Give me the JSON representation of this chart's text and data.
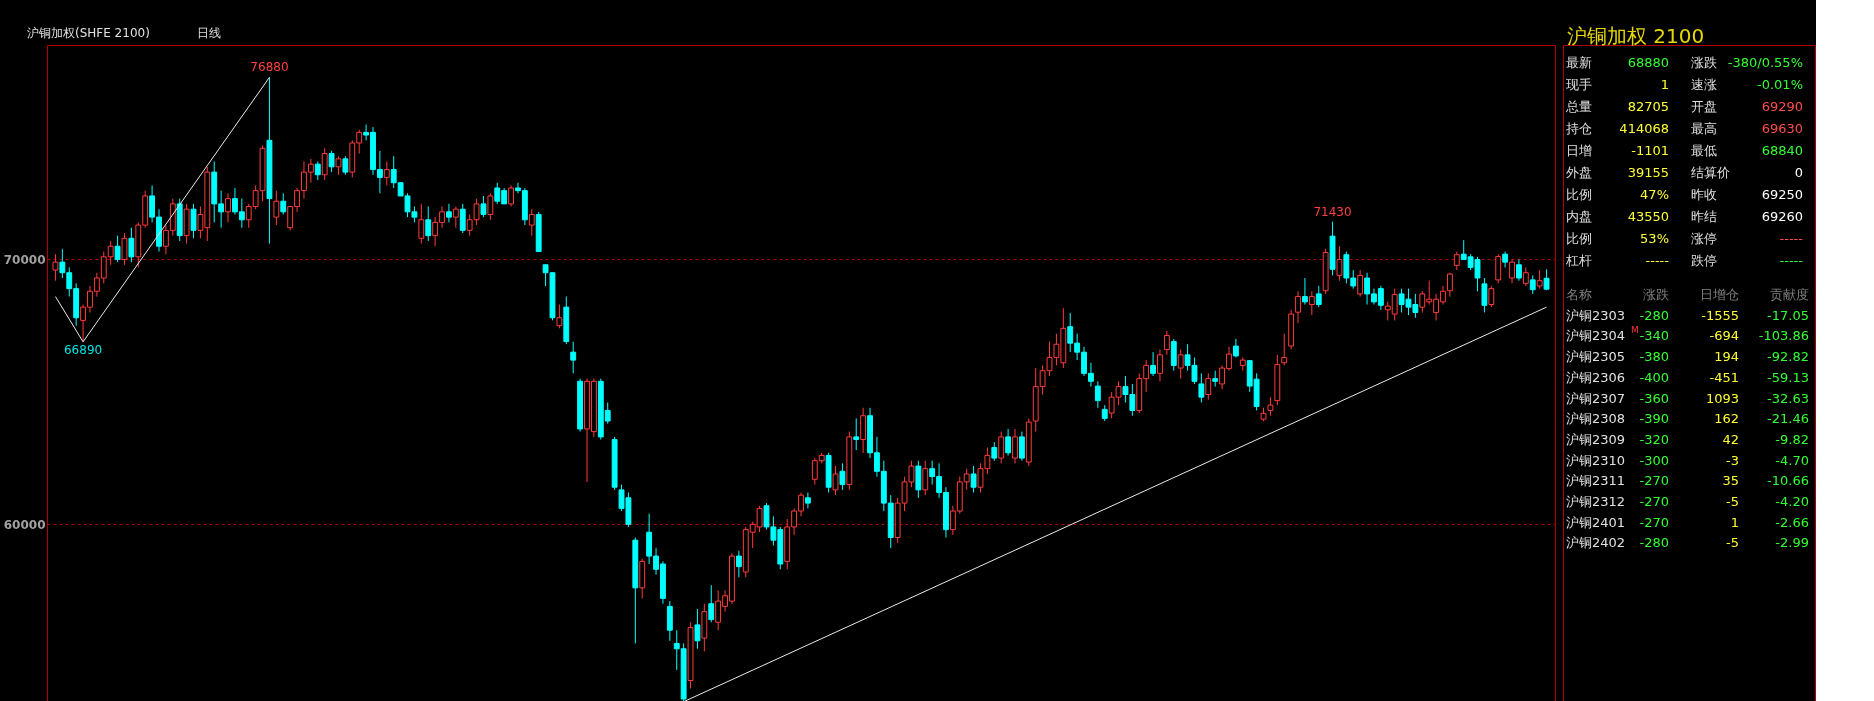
{
  "chart_data": [
    {
      "type": "candlestick",
      "title": "沪铜加权(SHFE 2100)",
      "subtitle": "日线",
      "categories": [
        null,
        null,
        null,
        null,
        null,
        null,
        null,
        null,
        null,
        null,
        null,
        null,
        null,
        null,
        null,
        null,
        null,
        null,
        null,
        null,
        null,
        null,
        null,
        null,
        null,
        null,
        null,
        null,
        null,
        null,
        null,
        null,
        null,
        null,
        null,
        null,
        null,
        null,
        null,
        null,
        null,
        null,
        null,
        null,
        null,
        null,
        null,
        null,
        null,
        null,
        null,
        null,
        null,
        null,
        null,
        null,
        null,
        null,
        null,
        null,
        null,
        null,
        null,
        null,
        null,
        null,
        null,
        null,
        null,
        null,
        null,
        null,
        null,
        null,
        null,
        null,
        null,
        null,
        null,
        null,
        null,
        null,
        null,
        null,
        null,
        null,
        null,
        null,
        null,
        null,
        null,
        null,
        null,
        null,
        null,
        null,
        null,
        null,
        null,
        null,
        null,
        null,
        null,
        null,
        null,
        null,
        null,
        null,
        null,
        null,
        null,
        null,
        null,
        null,
        null,
        null,
        null,
        null,
        null,
        null,
        null,
        null,
        null,
        null,
        null,
        null,
        null,
        null,
        null,
        null,
        null,
        null,
        null,
        null,
        null,
        null,
        null,
        null,
        null,
        null,
        null,
        null,
        null,
        null,
        null,
        null,
        null,
        null,
        null,
        null,
        null,
        null,
        null,
        null,
        null,
        null,
        null,
        null,
        null,
        null,
        null,
        null,
        null,
        null,
        null,
        null,
        null,
        null,
        null,
        null,
        null,
        null,
        null,
        null,
        null,
        null,
        null,
        null,
        null,
        null,
        null,
        null,
        null,
        null,
        null,
        null,
        null,
        null,
        null,
        null,
        null,
        null,
        null,
        null,
        null,
        null,
        null,
        null,
        null,
        null,
        null,
        null,
        null,
        null,
        null,
        null,
        null,
        null,
        null,
        null,
        null,
        null,
        null,
        null,
        null,
        null,
        null
      ],
      "ohlc": [
        [
          69600,
          70200,
          69200,
          69900
        ],
        [
          69900,
          70400,
          69300,
          69500
        ],
        [
          69500,
          69700,
          68600,
          68900
        ],
        [
          68900,
          69100,
          67500,
          67800
        ],
        [
          67700,
          68300,
          66890,
          68200
        ],
        [
          68200,
          69000,
          68000,
          68800
        ],
        [
          68800,
          69500,
          68600,
          69300
        ],
        [
          69300,
          70300,
          69100,
          70100
        ],
        [
          70100,
          70700,
          69800,
          70500
        ],
        [
          70500,
          70900,
          69900,
          70000
        ],
        [
          70000,
          71000,
          69800,
          70800
        ],
        [
          70800,
          71200,
          69900,
          70100
        ],
        [
          70100,
          71400,
          69700,
          71300
        ],
        [
          71300,
          72600,
          71200,
          72400
        ],
        [
          72400,
          72800,
          71400,
          71600
        ],
        [
          71600,
          71900,
          70300,
          70500
        ],
        [
          70500,
          71300,
          70200,
          71100
        ],
        [
          71100,
          72300,
          70900,
          72100
        ],
        [
          72100,
          72300,
          70700,
          70900
        ],
        [
          70900,
          72100,
          70600,
          71900
        ],
        [
          71900,
          72100,
          70800,
          71100
        ],
        [
          71100,
          72000,
          70800,
          71700
        ],
        [
          71200,
          73500,
          70700,
          73300
        ],
        [
          73300,
          73700,
          71400,
          72100
        ],
        [
          72100,
          72600,
          71200,
          71800
        ],
        [
          71800,
          72500,
          71400,
          72300
        ],
        [
          72300,
          72700,
          71700,
          71800
        ],
        [
          71800,
          72300,
          71200,
          71500
        ],
        [
          71500,
          72100,
          71200,
          72000
        ],
        [
          72000,
          72800,
          71900,
          72600
        ],
        [
          72600,
          74300,
          72200,
          74200
        ],
        [
          74500,
          76880,
          70600,
          72300
        ],
        [
          71600,
          72600,
          71300,
          72200
        ],
        [
          72200,
          72500,
          71700,
          71800
        ],
        [
          71200,
          72000,
          71100,
          72000
        ],
        [
          72000,
          72700,
          71800,
          72600
        ],
        [
          72600,
          73700,
          72300,
          73300
        ],
        [
          73300,
          73800,
          72900,
          73600
        ],
        [
          73600,
          73700,
          73000,
          73200
        ],
        [
          73200,
          74200,
          73000,
          74000
        ],
        [
          74000,
          74100,
          73300,
          73500
        ],
        [
          73500,
          73900,
          73200,
          73800
        ],
        [
          73800,
          73900,
          73200,
          73300
        ],
        [
          73300,
          74500,
          73100,
          74400
        ],
        [
          74400,
          74900,
          74000,
          74800
        ],
        [
          74800,
          75100,
          74500,
          74700
        ],
        [
          74800,
          75000,
          73200,
          73400
        ],
        [
          73400,
          74100,
          72500,
          73100
        ],
        [
          73100,
          73700,
          72800,
          73400
        ],
        [
          73400,
          73900,
          72700,
          72900
        ],
        [
          72900,
          72900,
          72400,
          72400
        ],
        [
          72400,
          72500,
          71600,
          71800
        ],
        [
          71800,
          72000,
          71400,
          71600
        ],
        [
          70800,
          72100,
          70600,
          71500
        ],
        [
          71500,
          72000,
          70700,
          70900
        ],
        [
          70900,
          71600,
          70500,
          71400
        ],
        [
          71400,
          72000,
          71200,
          71800
        ],
        [
          71800,
          72100,
          71400,
          71600
        ],
        [
          71600,
          72000,
          71200,
          71900
        ],
        [
          71900,
          72100,
          71000,
          71100
        ],
        [
          71100,
          71700,
          70900,
          71500
        ],
        [
          71500,
          72300,
          71300,
          72100
        ],
        [
          72100,
          72400,
          71600,
          71700
        ],
        [
          71700,
          72500,
          71500,
          72400
        ],
        [
          72700,
          72900,
          72100,
          72200
        ],
        [
          72600,
          72700,
          72100,
          72100
        ],
        [
          72100,
          72800,
          72000,
          72700
        ],
        [
          72700,
          72900,
          72500,
          72600
        ],
        [
          72600,
          72700,
          71300,
          71500
        ],
        [
          71300,
          71900,
          70900,
          71700
        ],
        [
          71700,
          71800,
          70300,
          70300
        ],
        [
          69800,
          69800,
          69000,
          69500
        ],
        [
          69500,
          69500,
          67700,
          67800
        ],
        [
          67500,
          68300,
          67400,
          67800
        ],
        [
          68200,
          68600,
          66800,
          66900
        ],
        [
          66500,
          66900,
          65700,
          66200
        ],
        [
          65400,
          65500,
          63500,
          63600
        ],
        [
          63600,
          65500,
          61600,
          65400
        ],
        [
          63500,
          65500,
          63300,
          65400
        ],
        [
          65400,
          65500,
          63200,
          63300
        ],
        [
          64300,
          64600,
          63800,
          63900
        ],
        [
          63200,
          63300,
          61300,
          61400
        ],
        [
          61300,
          61500,
          60500,
          60600
        ],
        [
          61000,
          61200,
          59900,
          60000
        ],
        [
          59400,
          59500,
          55500,
          57600
        ],
        [
          57600,
          58700,
          57200,
          58600
        ],
        [
          59700,
          60400,
          58500,
          58800
        ],
        [
          58800,
          59100,
          58100,
          58300
        ],
        [
          58500,
          58600,
          57000,
          57200
        ],
        [
          56900,
          57100,
          55600,
          56000
        ],
        [
          55500,
          56000,
          54500,
          55300
        ],
        [
          55300,
          55500,
          53300,
          53400
        ],
        [
          54100,
          56300,
          53800,
          56100
        ],
        [
          56200,
          56800,
          55300,
          55600
        ],
        [
          55700,
          57000,
          55200,
          56700
        ],
        [
          57000,
          57700,
          56300,
          56400
        ],
        [
          56300,
          57500,
          56000,
          57100
        ],
        [
          56900,
          57500,
          56700,
          57300
        ],
        [
          57100,
          58900,
          57000,
          58800
        ],
        [
          58800,
          59000,
          58000,
          58400
        ],
        [
          58200,
          59900,
          58000,
          59800
        ],
        [
          59700,
          60100,
          59100,
          60000
        ],
        [
          59900,
          60700,
          59700,
          60600
        ],
        [
          60700,
          60800,
          59800,
          59900
        ],
        [
          59900,
          60300,
          59200,
          59400
        ],
        [
          59800,
          59900,
          58300,
          58500
        ],
        [
          58600,
          60200,
          58300,
          59900
        ],
        [
          59900,
          60600,
          59600,
          60500
        ],
        [
          60500,
          61200,
          60300,
          61100
        ],
        [
          61000,
          61200,
          60600,
          60800
        ],
        [
          61700,
          62500,
          61500,
          62400
        ],
        [
          62400,
          62700,
          62300,
          62600
        ],
        [
          62600,
          62700,
          61200,
          61400
        ],
        [
          61300,
          62200,
          61100,
          61900
        ],
        [
          62000,
          62300,
          61300,
          61500
        ],
        [
          61500,
          63500,
          61300,
          63300
        ],
        [
          63300,
          64000,
          62800,
          63200
        ],
        [
          63200,
          64400,
          62700,
          64100
        ],
        [
          64100,
          64400,
          62500,
          62700
        ],
        [
          62700,
          63300,
          61800,
          62000
        ],
        [
          62000,
          62400,
          60500,
          60800
        ],
        [
          60800,
          61100,
          59100,
          59500
        ],
        [
          59500,
          61000,
          59300,
          60800
        ],
        [
          60800,
          61800,
          60500,
          61600
        ],
        [
          61600,
          62400,
          61400,
          62200
        ],
        [
          62200,
          62400,
          61000,
          61300
        ],
        [
          61300,
          62400,
          61100,
          62100
        ],
        [
          62100,
          62400,
          61500,
          61800
        ],
        [
          61800,
          62300,
          61000,
          61200
        ],
        [
          61200,
          61400,
          59500,
          59800
        ],
        [
          59800,
          60700,
          59600,
          60500
        ],
        [
          60500,
          61800,
          60400,
          61600
        ],
        [
          61600,
          62100,
          61300,
          61900
        ],
        [
          61900,
          62200,
          61200,
          61400
        ],
        [
          61400,
          62300,
          61200,
          62100
        ],
        [
          62100,
          62900,
          61900,
          62600
        ],
        [
          62900,
          63100,
          62400,
          62500
        ],
        [
          62500,
          63500,
          62300,
          63300
        ],
        [
          63300,
          63600,
          62600,
          62700
        ],
        [
          62500,
          63600,
          62300,
          63300
        ],
        [
          63300,
          63500,
          62400,
          62500
        ],
        [
          62350,
          64000,
          62200,
          63860
        ],
        [
          63900,
          65900,
          63500,
          65200
        ],
        [
          65200,
          66000,
          64900,
          65800
        ],
        [
          65800,
          66900,
          65600,
          66300
        ],
        [
          66300,
          67200,
          66000,
          66800
        ],
        [
          66100,
          68160,
          65900,
          67400
        ],
        [
          67460,
          67980,
          66500,
          66840
        ],
        [
          66840,
          67200,
          66200,
          66500
        ],
        [
          66500,
          66700,
          65600,
          65700
        ],
        [
          65700,
          66100,
          65200,
          65400
        ],
        [
          65220,
          65400,
          64400,
          64670
        ],
        [
          64340,
          64500,
          63900,
          64000
        ],
        [
          64200,
          65000,
          64000,
          64800
        ],
        [
          64800,
          65400,
          64500,
          65200
        ],
        [
          65200,
          65600,
          64600,
          64900
        ],
        [
          64900,
          65300,
          64100,
          64300
        ],
        [
          64300,
          65700,
          64200,
          65500
        ],
        [
          65500,
          66200,
          65000,
          66000
        ],
        [
          66000,
          66500,
          65600,
          65700
        ],
        [
          65700,
          66600,
          65400,
          66400
        ],
        [
          66600,
          67300,
          66400,
          67130
        ],
        [
          66900,
          67000,
          65800,
          66000
        ],
        [
          65900,
          66600,
          65500,
          66400
        ],
        [
          66400,
          66800,
          65800,
          66000
        ],
        [
          66000,
          66300,
          65300,
          65400
        ],
        [
          65300,
          65700,
          64600,
          64800
        ],
        [
          64900,
          65700,
          64700,
          65500
        ],
        [
          65500,
          65800,
          65200,
          65400
        ],
        [
          65300,
          66000,
          65100,
          65900
        ],
        [
          65880,
          66700,
          65800,
          66430
        ],
        [
          66730,
          67000,
          66300,
          66360
        ],
        [
          66000,
          66300,
          65800,
          66200
        ],
        [
          66180,
          66200,
          65000,
          65220
        ],
        [
          65480,
          65700,
          64300,
          64450
        ],
        [
          63970,
          64400,
          63900,
          64190
        ],
        [
          64300,
          64800,
          64100,
          64500
        ],
        [
          64670,
          66400,
          64500,
          66030
        ],
        [
          66100,
          67200,
          66000,
          66300
        ],
        [
          66730,
          68100,
          66600,
          67940
        ],
        [
          68010,
          68800,
          67600,
          68600
        ],
        [
          68600,
          69300,
          68300,
          68400
        ],
        [
          68300,
          68800,
          67900,
          68600
        ],
        [
          68700,
          69000,
          68200,
          68300
        ],
        [
          68820,
          70400,
          68700,
          70260
        ],
        [
          70880,
          71430,
          69400,
          69630
        ],
        [
          69400,
          70500,
          69200,
          70000
        ],
        [
          70180,
          70300,
          69100,
          69300
        ],
        [
          69300,
          69600,
          68900,
          69000
        ],
        [
          68700,
          69600,
          68600,
          69400
        ],
        [
          69300,
          69500,
          68300,
          68700
        ],
        [
          68700,
          68900,
          68300,
          68400
        ],
        [
          68900,
          69000,
          68100,
          68270
        ],
        [
          68100,
          68400,
          67700,
          68240
        ],
        [
          67940,
          68900,
          67700,
          68680
        ],
        [
          68700,
          68900,
          68000,
          68300
        ],
        [
          68500,
          68900,
          67900,
          68200
        ],
        [
          68300,
          68700,
          67800,
          68000
        ],
        [
          68200,
          68800,
          68000,
          68700
        ],
        [
          68400,
          69200,
          68300,
          68500
        ],
        [
          68000,
          68700,
          67700,
          68500
        ],
        [
          68400,
          69000,
          68300,
          68800
        ],
        [
          68820,
          69500,
          68600,
          69450
        ],
        [
          69780,
          70300,
          69600,
          70180
        ],
        [
          70200,
          70730,
          70000,
          70000
        ],
        [
          70100,
          70200,
          69600,
          69700
        ],
        [
          70000,
          70100,
          68800,
          69300
        ],
        [
          69080,
          69300,
          68000,
          68270
        ],
        [
          68300,
          69000,
          68200,
          68900
        ],
        [
          69230,
          70200,
          69100,
          70110
        ],
        [
          70200,
          70300,
          69700,
          69900
        ],
        [
          69300,
          70000,
          69100,
          69900
        ],
        [
          69800,
          70000,
          69200,
          69300
        ],
        [
          69100,
          69700,
          69000,
          69500
        ],
        [
          69230,
          69400,
          68700,
          68860
        ],
        [
          69000,
          69600,
          68900,
          69200
        ],
        [
          69290,
          69630,
          68840,
          68880
        ]
      ],
      "colors": [
        "#ff3b3b",
        "#00ffff",
        "#00ffff",
        "#00ffff",
        "#ff3b3b",
        "#ff3b3b",
        "#ff3b3b",
        "#ff3b3b",
        "#ff3b3b",
        "#00ffff",
        "#ff3b3b",
        "#00ffff",
        "#ff3b3b",
        "#ff3b3b",
        "#00ffff",
        "#00ffff",
        "#ff3b3b",
        "#ff3b3b",
        "#00ffff",
        "#ff3b3b",
        "#00ffff",
        "#ff3b3b",
        "#ff3b3b",
        "#00ffff",
        "#00ffff",
        "#ff3b3b",
        "#00ffff",
        "#00ffff",
        "#ff3b3b",
        "#ff3b3b",
        "#ff3b3b",
        "#00ffff",
        "#ff3b3b",
        "#00ffff",
        "#ff3b3b",
        "#ff3b3b",
        "#ff3b3b",
        "#ff3b3b",
        "#00ffff",
        "#ff3b3b",
        "#00ffff",
        "#ff3b3b",
        "#00ffff",
        "#ff3b3b",
        "#ff3b3b",
        "#00ffff",
        "#00ffff",
        "#00ffff",
        "#ff3b3b",
        "#00ffff",
        "#00ffff",
        "#00ffff",
        "#00ffff",
        "#ff3b3b",
        "#00ffff",
        "#ff3b3b",
        "#ff3b3b",
        "#00ffff",
        "#ff3b3b",
        "#00ffff",
        "#ff3b3b",
        "#ff3b3b",
        "#00ffff",
        "#ff3b3b",
        "#00ffff",
        "#00ffff",
        "#ff3b3b",
        "#00ffff",
        "#00ffff",
        "#ff3b3b",
        "#00ffff",
        "#00ffff",
        "#00ffff",
        "#ff3b3b",
        "#00ffff",
        "#00ffff",
        "#00ffff",
        "#ff3b3b",
        "#ff3b3b",
        "#00ffff",
        "#00ffff",
        "#00ffff",
        "#00ffff",
        "#00ffff",
        "#00ffff",
        "#ff3b3b",
        "#00ffff",
        "#00ffff",
        "#00ffff",
        "#00ffff",
        "#00ffff",
        "#00ffff",
        "#ff3b3b",
        "#00ffff",
        "#ff3b3b",
        "#00ffff",
        "#ff3b3b",
        "#ff3b3b",
        "#ff3b3b",
        "#00ffff",
        "#ff3b3b",
        "#ff3b3b",
        "#ff3b3b",
        "#00ffff",
        "#00ffff",
        "#00ffff",
        "#ff3b3b",
        "#ff3b3b",
        "#ff3b3b",
        "#00ffff",
        "#ff3b3b",
        "#ff3b3b",
        "#00ffff",
        "#ff3b3b",
        "#00ffff",
        "#ff3b3b",
        "#00ffff",
        "#ff3b3b",
        "#00ffff",
        "#00ffff",
        "#00ffff",
        "#00ffff",
        "#ff3b3b",
        "#ff3b3b",
        "#ff3b3b",
        "#00ffff",
        "#ff3b3b",
        "#00ffff",
        "#00ffff",
        "#00ffff",
        "#ff3b3b",
        "#ff3b3b",
        "#ff3b3b",
        "#00ffff",
        "#ff3b3b",
        "#ff3b3b",
        "#00ffff",
        "#ff3b3b",
        "#00ffff",
        "#ff3b3b",
        "#00ffff",
        "#ff3b3b",
        "#ff3b3b",
        "#ff3b3b",
        "#ff3b3b",
        "#ff3b3b",
        "#ff3b3b",
        "#00ffff",
        "#00ffff",
        "#00ffff",
        "#00ffff",
        "#00ffff",
        "#00ffff",
        "#ff3b3b",
        "#ff3b3b",
        "#00ffff",
        "#00ffff",
        "#ff3b3b",
        "#ff3b3b",
        "#00ffff",
        "#ff3b3b",
        "#ff3b3b",
        "#00ffff",
        "#ff3b3b",
        "#00ffff",
        "#00ffff",
        "#00ffff",
        "#ff3b3b",
        "#00ffff",
        "#ff3b3b",
        "#ff3b3b",
        "#00ffff",
        "#ff3b3b",
        "#00ffff",
        "#00ffff",
        "#ff3b3b",
        "#ff3b3b",
        "#ff3b3b",
        "#ff3b3b",
        "#ff3b3b",
        "#ff3b3b",
        "#00ffff",
        "#ff3b3b",
        "#00ffff",
        "#ff3b3b",
        "#00ffff",
        "#ff3b3b",
        "#00ffff",
        "#00ffff",
        "#ff3b3b",
        "#00ffff",
        "#00ffff",
        "#00ffff",
        "#ff3b3b",
        "#ff3b3b",
        "#00ffff",
        "#00ffff",
        "#00ffff",
        "#ff3b3b",
        "#ff3b3b",
        "#ff3b3b",
        "#ff3b3b",
        "#ff3b3b",
        "#ff3b3b",
        "#00ffff",
        "#00ffff",
        "#00ffff",
        "#00ffff",
        "#ff3b3b",
        "#ff3b3b",
        "#00ffff",
        "#ff3b3b",
        "#00ffff",
        "#ff3b3b",
        "#00ffff",
        "#ff3b3b",
        "#00ffff"
      ],
      "series": [
        {
          "type": "line",
          "color": "#e8e8e8",
          "values": [
            68600,
            null,
            null,
            null,
            66890,
            null,
            null,
            null,
            null,
            null,
            null,
            null,
            null,
            null,
            null,
            null,
            null,
            null,
            null,
            null,
            null,
            null,
            null,
            null,
            null,
            null,
            null,
            null,
            null,
            null,
            null,
            76880,
            null,
            null,
            null,
            null,
            null,
            null,
            null,
            null,
            null,
            null,
            null,
            null,
            null,
            null,
            null,
            null,
            null,
            null,
            null,
            null,
            null,
            null,
            null,
            null,
            null,
            null,
            null,
            null,
            null,
            null,
            null,
            null,
            null,
            null,
            null,
            null,
            null,
            null,
            null,
            null,
            null,
            null,
            null,
            null,
            null,
            null,
            null,
            null,
            null,
            null,
            null,
            null,
            null,
            null,
            null,
            null,
            null,
            null,
            null,
            null,
            null,
            null,
            null,
            null,
            null,
            null,
            null,
            null,
            null,
            null,
            null,
            null,
            null,
            null,
            null,
            null,
            null,
            null,
            null,
            null,
            null,
            null,
            null,
            null,
            null,
            null,
            null,
            null,
            null,
            null,
            null,
            null,
            null,
            null,
            null,
            null,
            null,
            null,
            null,
            null,
            null,
            null,
            null,
            null,
            null,
            null,
            null,
            null,
            null,
            null,
            null,
            null,
            null,
            null,
            null,
            null,
            null,
            null,
            null,
            null,
            null,
            null,
            null,
            null,
            null,
            null,
            null,
            null,
            null,
            null,
            null,
            null,
            null,
            null,
            null,
            null,
            null,
            null,
            null,
            null,
            null,
            null,
            null,
            null,
            null,
            null,
            null,
            null,
            null,
            null,
            null,
            null,
            null,
            null,
            null,
            null,
            null,
            null,
            null,
            null,
            null,
            null,
            null,
            null,
            null,
            null,
            null,
            null,
            null,
            null,
            null,
            null,
            null,
            null,
            null,
            null,
            null,
            null,
            null,
            null,
            null,
            null,
            null,
            null,
            null
          ]
        },
        {
          "type": "line",
          "color": "#e8e8e8",
          "values": [
            null,
            null,
            null,
            null,
            null,
            null,
            null,
            null,
            null,
            null,
            null,
            null,
            null,
            null,
            null,
            null,
            null,
            null,
            null,
            null,
            null,
            null,
            null,
            null,
            null,
            null,
            null,
            null,
            null,
            null,
            null,
            null,
            null,
            null,
            null,
            null,
            null,
            null,
            null,
            null,
            null,
            null,
            null,
            null,
            null,
            null,
            null,
            null,
            null,
            null,
            null,
            null,
            null,
            null,
            null,
            null,
            null,
            null,
            null,
            null,
            null,
            null,
            null,
            null,
            null,
            null,
            null,
            null,
            null,
            null,
            null,
            null,
            null,
            null,
            null,
            null,
            null,
            null,
            null,
            null,
            null,
            null,
            null,
            null,
            null,
            null,
            null,
            null,
            null,
            null,
            null,
            53300,
            null,
            null,
            null,
            null,
            null,
            null,
            null,
            null,
            null,
            null,
            null,
            null,
            null,
            null,
            null,
            null,
            null,
            null,
            null,
            null,
            null,
            null,
            null,
            null,
            null,
            null,
            null,
            null,
            null,
            null,
            null,
            null,
            null,
            null,
            null,
            null,
            null,
            null,
            null,
            null,
            null,
            null,
            null,
            null,
            null,
            null,
            null,
            null,
            null,
            null,
            null,
            null,
            null,
            null,
            null,
            null,
            null,
            null,
            null,
            null,
            null,
            null,
            null,
            null,
            null,
            null,
            null,
            null,
            null,
            null,
            null,
            null,
            null,
            null,
            null,
            null,
            null,
            null,
            null,
            null,
            null,
            null,
            null,
            null,
            null,
            null,
            null,
            null,
            null,
            null,
            null,
            null,
            null,
            null,
            null,
            null,
            null,
            null,
            null,
            null,
            null,
            null,
            null,
            null,
            null,
            null,
            null,
            null,
            null,
            null,
            null,
            null,
            null,
            null,
            null,
            null,
            null,
            null,
            null,
            null,
            null,
            null,
            null,
            null,
            68200
          ]
        }
      ],
      "annotations": [
        "76880",
        "66890",
        "71430"
      ],
      "ylim": [
        53100,
        78100
      ],
      "yticks": [
        60000,
        70000
      ],
      "grid": "y",
      "tick_labels": "y"
    },
    {
      "type": "other",
      "title": "沪铜加权  2100",
      "annotations": [
        "最新",
        "68880",
        "涨跌",
        "-380/0.55%",
        "现手",
        "1",
        "速涨",
        "-0.01%",
        "总量",
        "82705",
        "开盘",
        "69290",
        "持仓",
        "414068",
        "最高",
        "69630",
        "日增",
        "-1101",
        "最低",
        "68840",
        "外盘",
        "39155",
        "结算价",
        "0",
        "比例",
        "47%",
        "昨收",
        "69250",
        "内盘",
        "43550",
        "昨结",
        "69260",
        "比例",
        "53%",
        "涨停",
        "-----",
        "杠杆",
        "-----",
        "跌停",
        "-----",
        "名称",
        "涨跌",
        "日增仓",
        "贡献度",
        "沪铜2303",
        "-280",
        "-1555",
        "-17.05",
        "沪铜2304",
        "-340",
        "-694",
        "-103.86",
        "沪铜2305",
        "-380",
        "194",
        "-92.82",
        "沪铜2306",
        "-400",
        "-451",
        "-59.13",
        "沪铜2307",
        "-360",
        "1093",
        "-32.63",
        "沪铜2308",
        "-390",
        "162",
        "-21.46",
        "沪铜2309",
        "-320",
        "42",
        "-9.82",
        "沪铜2310",
        "-300",
        "-3",
        "-4.70",
        "沪铜2311",
        "-270",
        "35",
        "-10.66",
        "沪铜2312",
        "-270",
        "-5",
        "-4.20",
        "沪铜2401",
        "-270",
        "1",
        "-2.66",
        "沪铜2402",
        "-280",
        "-5",
        "-2.99",
        "M"
      ],
      "colors": [
        "#e0e0e0",
        "#33ff33",
        "#e0e0e0",
        "#33ff33",
        "#e0e0e0",
        "#ffff33",
        "#e0e0e0",
        "#33ff33",
        "#e0e0e0",
        "#ffff33",
        "#e0e0e0",
        "#ff4d4d",
        "#e0e0e0",
        "#ffff33",
        "#e0e0e0",
        "#ff4d4d",
        "#e0e0e0",
        "#ffff33",
        "#e0e0e0",
        "#33ff33",
        "#e0e0e0",
        "#ffff33",
        "#e0e0e0",
        "#ffffff",
        "#e0e0e0",
        "#ffff33",
        "#e0e0e0",
        "#ffffff",
        "#e0e0e0",
        "#ffff33",
        "#e0e0e0",
        "#ffffff",
        "#e0e0e0",
        "#ffff33",
        "#e0e0e0",
        "#ff4d4d",
        "#e0e0e0",
        "#ffff33",
        "#e0e0e0",
        "#33ff33",
        "#808080",
        "#808080",
        "#808080",
        "#808080",
        "#e0e0e0",
        "#33ff33",
        "#ffff33",
        "#33ff33",
        "#e0e0e0",
        "#33ff33",
        "#ffff33",
        "#33ff33",
        "#e0e0e0",
        "#33ff33",
        "#ffff33",
        "#33ff33",
        "#e0e0e0",
        "#33ff33",
        "#ffff33",
        "#33ff33",
        "#e0e0e0",
        "#33ff33",
        "#ffff33",
        "#33ff33",
        "#e0e0e0",
        "#33ff33",
        "#ffff33",
        "#33ff33",
        "#e0e0e0",
        "#33ff33",
        "#ffff33",
        "#33ff33",
        "#e0e0e0",
        "#33ff33",
        "#ffff33",
        "#33ff33",
        "#e0e0e0",
        "#33ff33",
        "#ffff33",
        "#33ff33",
        "#e0e0e0",
        "#33ff33",
        "#ffff33",
        "#33ff33",
        "#e0e0e0",
        "#33ff33",
        "#ffff33",
        "#33ff33",
        "#e0e0e0",
        "#33ff33",
        "#ffff33",
        "#33ff33",
        "#ff3030"
      ]
    }
  ]
}
